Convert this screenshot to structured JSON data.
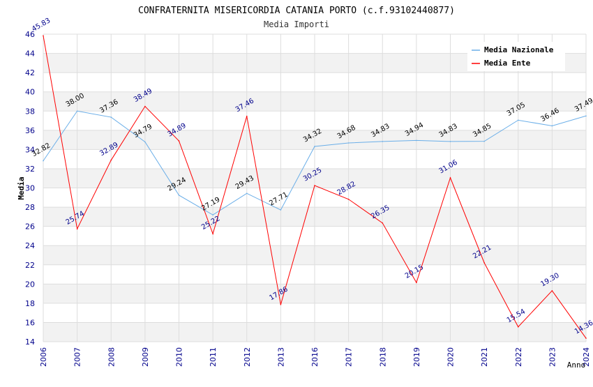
{
  "chart_data": {
    "type": "line",
    "title": "CONFRATERNITA MISERICORDIA CATANIA PORTO (c.f.93102440877)",
    "subtitle": "Media Importi",
    "xlabel": "Anno",
    "ylabel": "Media",
    "ylim": [
      14,
      46
    ],
    "ystep": 2,
    "grid": true,
    "legend_position": "top-right",
    "categories": [
      "2006",
      "2007",
      "2008",
      "2009",
      "2010",
      "2011",
      "2012",
      "2013",
      "2016",
      "2017",
      "2018",
      "2019",
      "2020",
      "2021",
      "2022",
      "2023",
      "2024"
    ],
    "series": [
      {
        "name": "Media Nazionale",
        "color": "#6aaee8",
        "label_color": "#000000",
        "values": [
          32.82,
          38.0,
          37.36,
          34.79,
          29.24,
          27.19,
          29.43,
          27.71,
          34.32,
          34.68,
          34.83,
          34.94,
          34.83,
          34.85,
          37.05,
          36.46,
          37.49
        ],
        "labels": [
          "32.82",
          "38.00",
          "37.36",
          "34.79",
          "29.24",
          "27.19",
          "29.43",
          "27.71",
          "34.32",
          "34.68",
          "34.83",
          "34.94",
          "34.83",
          "34.85",
          "37.05",
          "36.46",
          "37.49"
        ]
      },
      {
        "name": "Media Ente",
        "color": "#ff0000",
        "label_color": "#00008b",
        "values": [
          45.83,
          25.74,
          32.89,
          38.49,
          34.89,
          25.22,
          37.46,
          17.86,
          30.25,
          28.82,
          26.35,
          20.15,
          31.06,
          22.21,
          15.54,
          19.3,
          14.36
        ],
        "labels": [
          "45.83",
          "25.74",
          "32.89",
          "38.49",
          "34.89",
          "25.22",
          "37.46",
          "17.86",
          "30.25",
          "28.82",
          "26.35",
          "20.15",
          "31.06",
          "22.21",
          "15.54",
          "19.30",
          "14.36"
        ]
      }
    ],
    "colors": {
      "band": "#f2f2f2",
      "grid": "#dddddd",
      "tick": "#00008b"
    }
  }
}
